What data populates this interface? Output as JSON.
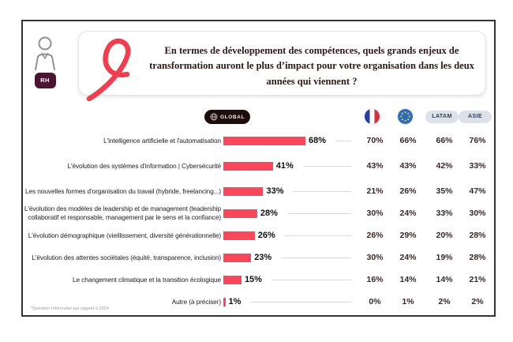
{
  "persona": {
    "badge_label": "RH"
  },
  "question": {
    "title": "En termes de développement des compétences, quels grands enjeux de transformation auront le plus d’impact pour votre organisation dans les deux années qui viennent ?"
  },
  "columns": {
    "global_label": "GLOBAL",
    "france_flag": "drapeau France",
    "europe_flag": "drapeau Union Européenne",
    "latam_label": "LATAM",
    "asie_label": "ASIE"
  },
  "rows": [
    {
      "label": "L'intelligence artificielle et l'automatisation",
      "value": 68,
      "global": "68%",
      "fr": "70%",
      "eu": "66%",
      "latam": "66%",
      "asie": "76%"
    },
    {
      "label": "L'évolution des systèmes d'information | Cybersécurité",
      "value": 41,
      "global": "41%",
      "fr": "43%",
      "eu": "43%",
      "latam": "42%",
      "asie": "33%"
    },
    {
      "label": "Les nouvelles formes d'organisation du travail (hybride, freelancing...)",
      "value": 33,
      "global": "33%",
      "fr": "21%",
      "eu": "26%",
      "latam": "35%",
      "asie": "47%"
    },
    {
      "label": "L'évolution des modèles de leadership et de management (leadership collaboratif et responsable, management par le sens et la confiance)",
      "value": 28,
      "global": "28%",
      "fr": "30%",
      "eu": "24%",
      "latam": "33%",
      "asie": "30%"
    },
    {
      "label": "L'évolution démographique (vieillissement, diversité générationnelle)",
      "value": 26,
      "global": "26%",
      "fr": "26%",
      "eu": "29%",
      "latam": "20%",
      "asie": "28%"
    },
    {
      "label": "L'évolution des attentes sociétales (équité, transparence, inclusion)",
      "value": 23,
      "global": "23%",
      "fr": "30%",
      "eu": "24%",
      "latam": "19%",
      "asie": "28%"
    },
    {
      "label": "Le changement climatique et la transition écologique",
      "value": 15,
      "global": "15%",
      "fr": "16%",
      "eu": "14%",
      "latam": "14%",
      "asie": "21%"
    },
    {
      "label": "Autre (à préciser)",
      "value": 1,
      "global": "1%",
      "fr": "0%",
      "eu": "1%",
      "latam": "2%",
      "asie": "2%"
    }
  ],
  "footnote": "*Question reformulée par rapport à 2024",
  "colors": {
    "bar": "#f9485a",
    "rh_badge": "#4a1532",
    "global_pill": "#1d0e0b",
    "region_pill": "#dde2ea",
    "logo_red": "#ec4050",
    "value_text": "#3a2727"
  },
  "chart_data": {
    "type": "bar",
    "title": "En termes de développement des compétences, quels grands enjeux de transformation auront le plus d’impact pour votre organisation dans les deux années qui viennent ?",
    "unit": "%",
    "orientation": "horizontal",
    "categories": [
      "L'intelligence artificielle et l'automatisation",
      "L'évolution des systèmes d'information | Cybersécurité",
      "Les nouvelles formes d'organisation du travail (hybride, freelancing...)",
      "L'évolution des modèles de leadership et de management (leadership collaboratif et responsable, management par le sens et la confiance)",
      "L'évolution démographique (vieillissement, diversité générationnelle)",
      "L'évolution des attentes sociétales (équité, transparence, inclusion)",
      "Le changement climatique et la transition écologique",
      "Autre (à préciser)"
    ],
    "series": [
      {
        "name": "Global",
        "values": [
          68,
          41,
          33,
          28,
          26,
          23,
          15,
          1
        ]
      },
      {
        "name": "France",
        "values": [
          70,
          43,
          21,
          30,
          26,
          30,
          16,
          0
        ]
      },
      {
        "name": "Europe",
        "values": [
          66,
          43,
          26,
          24,
          29,
          24,
          14,
          1
        ]
      },
      {
        "name": "LATAM",
        "values": [
          66,
          42,
          35,
          33,
          20,
          19,
          14,
          2
        ]
      },
      {
        "name": "Asie",
        "values": [
          76,
          33,
          47,
          30,
          28,
          28,
          21,
          2
        ]
      }
    ],
    "xlim": [
      0,
      100
    ],
    "grid": false,
    "footnote": "*Question reformulée par rapport à 2024"
  }
}
